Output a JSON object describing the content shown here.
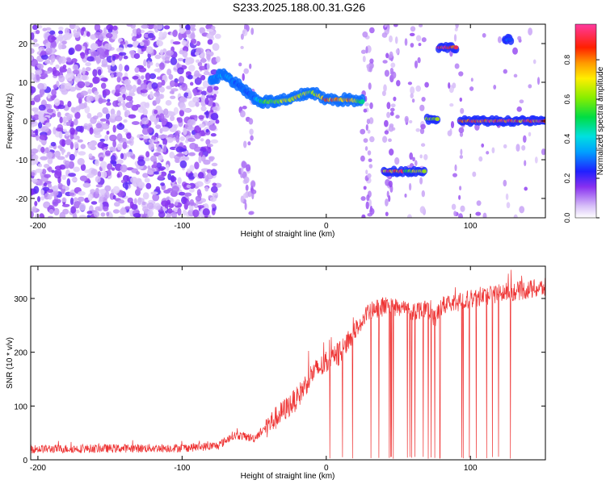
{
  "title": "S233.2025.188.00.31.G26",
  "chart_data": [
    {
      "type": "heatmap",
      "xlabel": "Height of straight line (km)",
      "ylabel": "Frequency (Hz)",
      "xlim": [
        -205,
        152
      ],
      "ylim": [
        -25,
        25
      ],
      "xticks": [
        -200,
        -100,
        0,
        100
      ],
      "yticks": [
        -20,
        -10,
        0,
        10,
        20
      ],
      "colorbar": {
        "label": "Normalized spectral amplitude",
        "range": [
          0,
          0.98
        ],
        "ticks": [
          0.0,
          0.2,
          0.4,
          0.6,
          0.8
        ]
      },
      "ridge": [
        {
          "x": -80,
          "y": 11,
          "amp": 0.35
        },
        {
          "x": -70,
          "y": 12,
          "amp": 0.35
        },
        {
          "x": -50,
          "y": 6,
          "amp": 0.3
        },
        {
          "x": -45,
          "y": 5,
          "amp": 0.55
        },
        {
          "x": -35,
          "y": 5,
          "amp": 0.7
        },
        {
          "x": -25,
          "y": 5.5,
          "amp": 0.8
        },
        {
          "x": -15,
          "y": 7,
          "amp": 0.75
        },
        {
          "x": -10,
          "y": 7.5,
          "amp": 0.7
        },
        {
          "x": 0,
          "y": 5.5,
          "amp": 0.85
        },
        {
          "x": 15,
          "y": 5.5,
          "amp": 0.9
        },
        {
          "x": 25,
          "y": 5,
          "amp": 0.55
        }
      ],
      "features": [
        {
          "x": [
            40,
            53
          ],
          "y": -13,
          "amp": 0.95
        },
        {
          "x": [
            55,
            68
          ],
          "y": -13,
          "amp": 0.7
        },
        {
          "x": [
            70,
            77
          ],
          "y": 0.5,
          "amp": 0.75
        },
        {
          "x": [
            78,
            90
          ],
          "y": 19,
          "amp": 0.95
        },
        {
          "x": [
            93,
            152
          ],
          "y": 0,
          "amp": 0.95
        },
        {
          "x": [
            124,
            128
          ],
          "y": 21,
          "amp": 0.3
        }
      ]
    },
    {
      "type": "line",
      "xlabel": "Height of straight line (km)",
      "ylabel": "SNR (10 * v/v)",
      "xlim": [
        -205,
        152
      ],
      "ylim": [
        0,
        360
      ],
      "xticks": [
        -200,
        -100,
        0,
        100
      ],
      "yticks": [
        0,
        100,
        200,
        300
      ],
      "color": "#ee3333",
      "trend": {
        "x": [
          -205,
          -100,
          -75,
          -65,
          -60,
          -50,
          -40,
          -30,
          -20,
          -10,
          0,
          10,
          20,
          30,
          40,
          50,
          60,
          70,
          75,
          80,
          100,
          120,
          152
        ],
        "y": [
          20,
          22,
          26,
          45,
          45,
          40,
          65,
          90,
          115,
          160,
          180,
          200,
          240,
          275,
          285,
          285,
          275,
          285,
          260,
          285,
          300,
          310,
          320
        ]
      },
      "dropouts_x_range": [
        0,
        130
      ]
    }
  ]
}
